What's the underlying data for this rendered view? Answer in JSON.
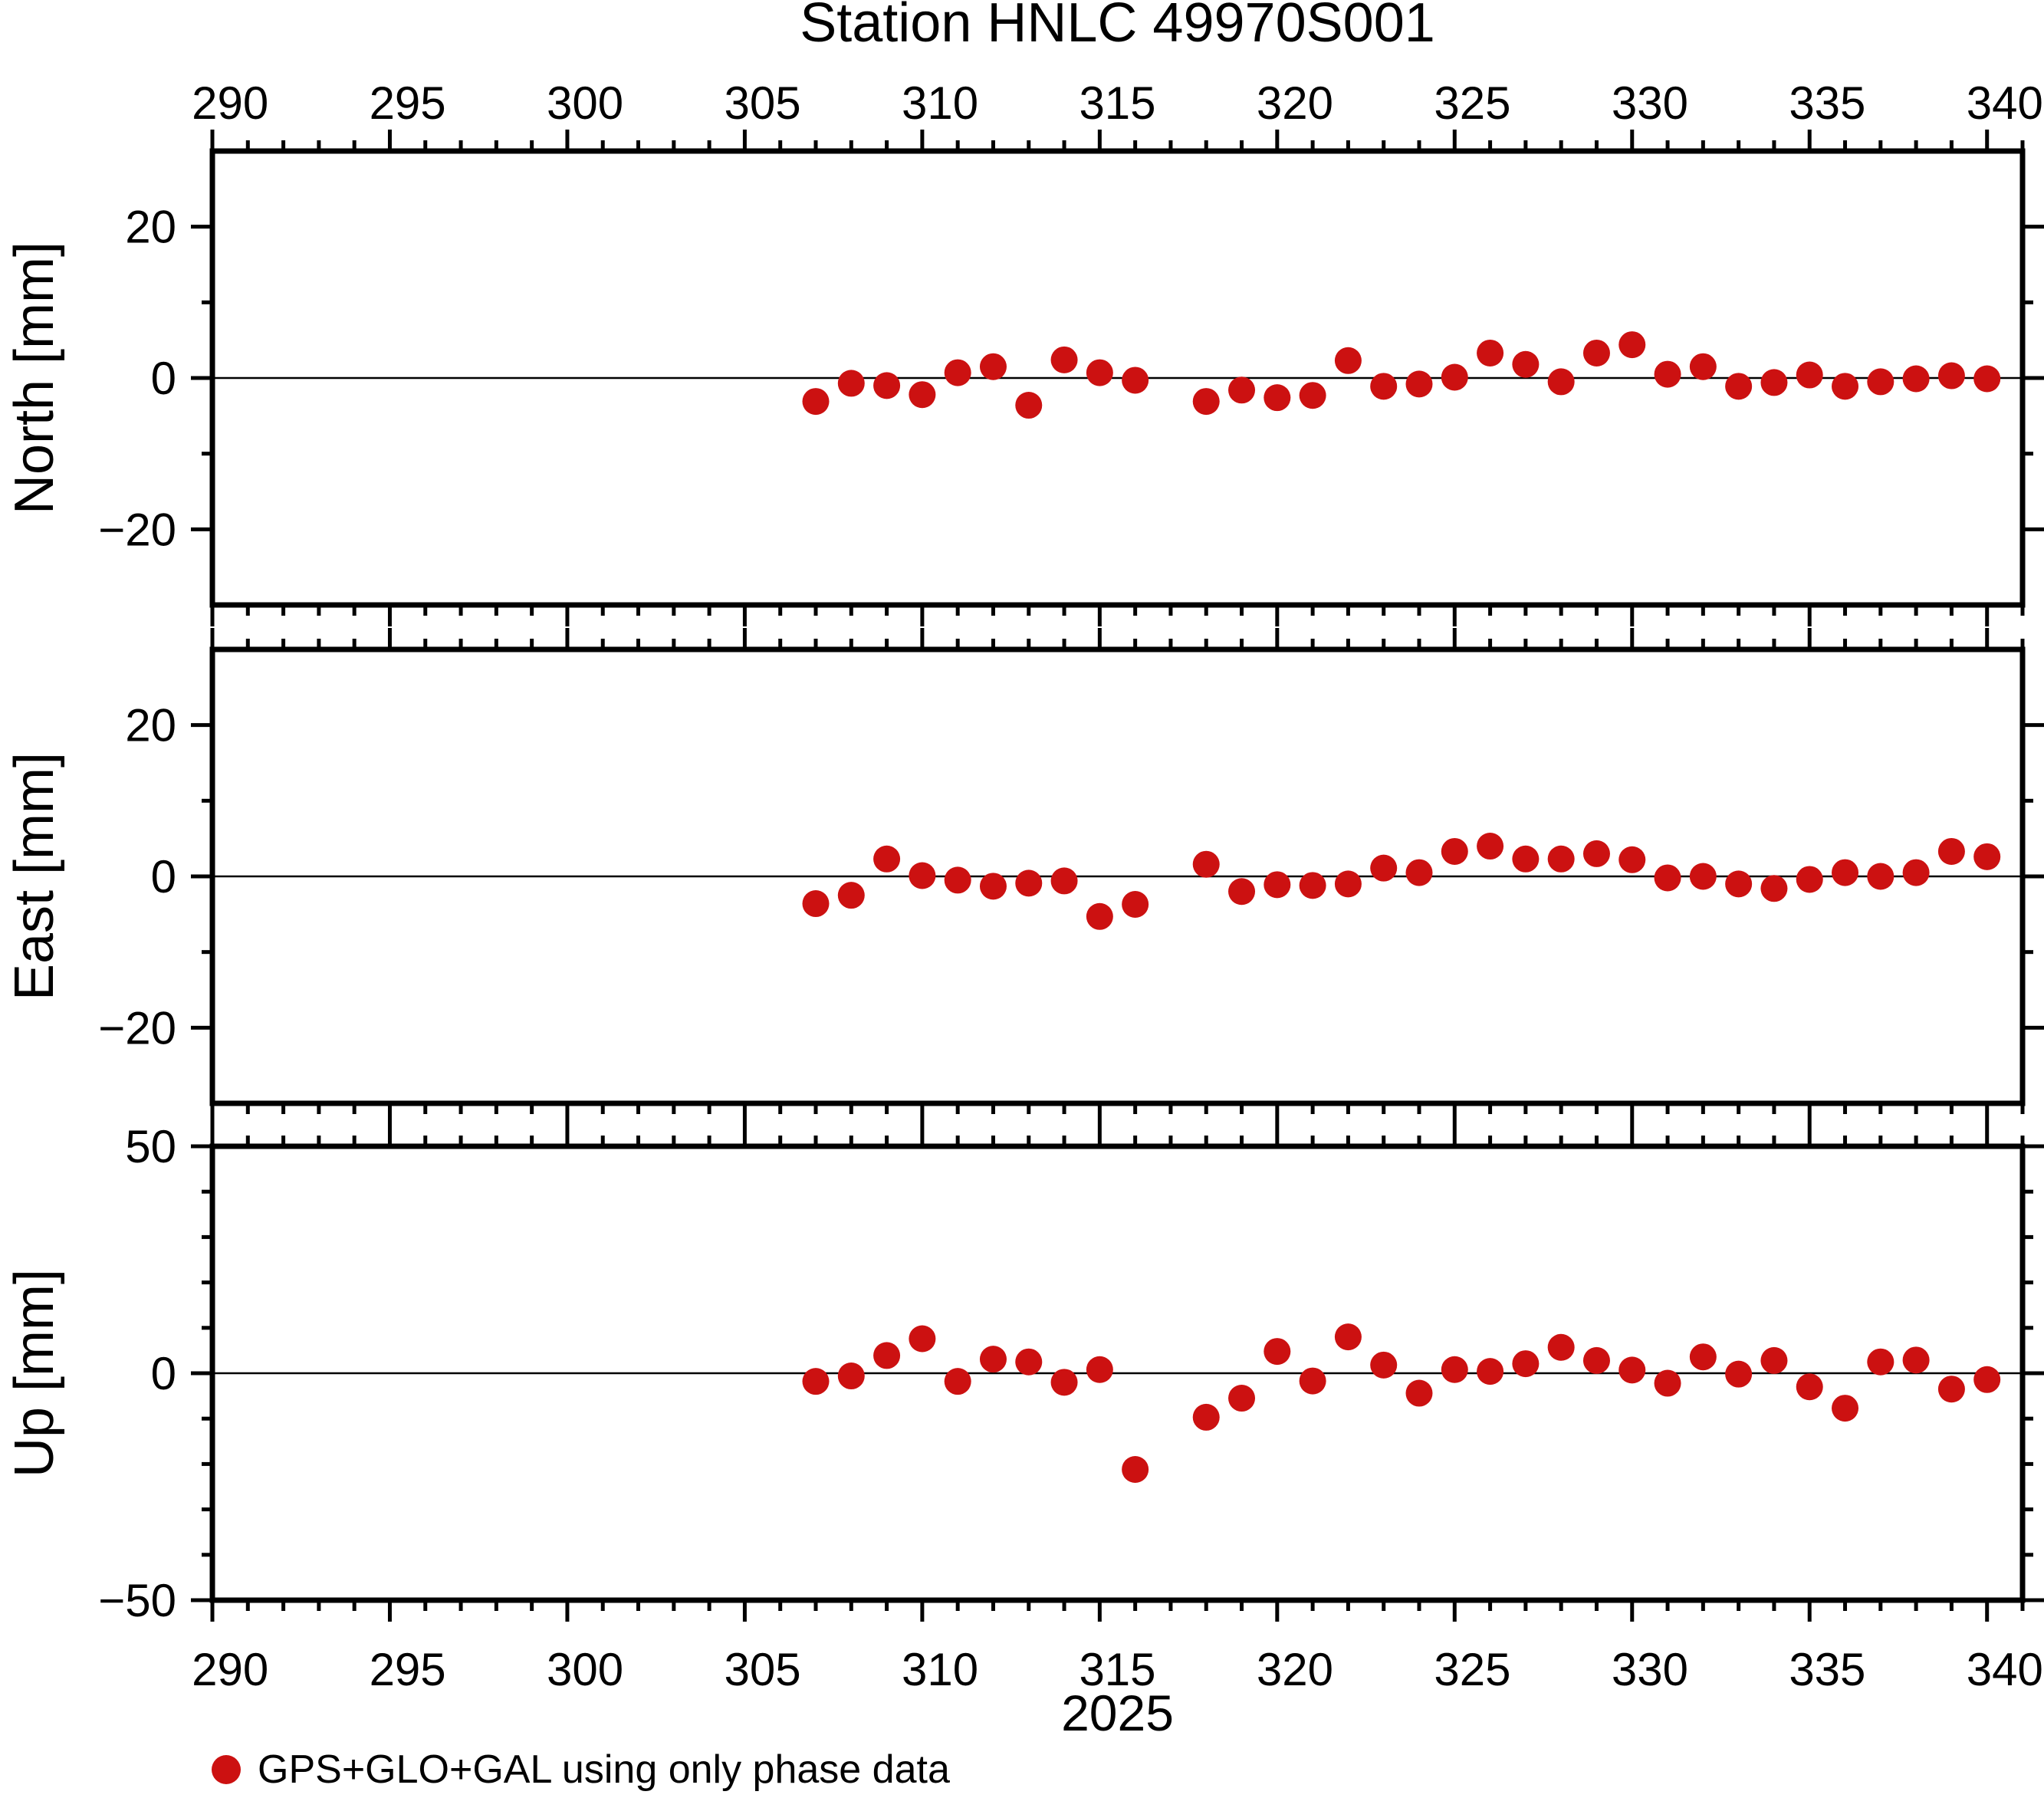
{
  "chart_data": {
    "type": "scatter",
    "title": "Station HNLC 49970S001",
    "xlabel": "2025",
    "legend": {
      "label": "GPS+GLO+GAL using only phase data",
      "position": "bottom-left"
    },
    "marker": {
      "shape": "circle",
      "color": "#cc1111",
      "radius_px": 17.5
    },
    "grid": "zero-line-only",
    "x_axis": {
      "range": [
        290,
        341
      ],
      "minor_tick_interval": 1,
      "major_tick_interval": 5,
      "tick_labels": [
        "290",
        "295",
        "300",
        "305",
        "310",
        "315",
        "320",
        "325",
        "330",
        "335",
        "340"
      ],
      "tick_label_values": [
        290,
        295,
        300,
        305,
        310,
        315,
        320,
        325,
        330,
        335,
        340
      ],
      "label_offset_days": 0.5,
      "labels_on": [
        "top-of-figure",
        "bottom-of-figure"
      ]
    },
    "panels": [
      {
        "name": "North",
        "ylabel": "North [mm]",
        "ylim": [
          -30,
          30
        ],
        "labeled_ticks": [
          {
            "v": 20,
            "label": "20"
          },
          {
            "v": 0,
            "label": "0"
          },
          {
            "v": -20,
            "label": "−20"
          }
        ],
        "minor_ticks": [
          10,
          -10
        ]
      },
      {
        "name": "East",
        "ylabel": "East [mm]",
        "ylim": [
          -30,
          30
        ],
        "labeled_ticks": [
          {
            "v": 20,
            "label": "20"
          },
          {
            "v": 0,
            "label": "0"
          },
          {
            "v": -20,
            "label": "−20"
          }
        ],
        "minor_ticks": [
          10,
          -10
        ]
      },
      {
        "name": "Up",
        "ylabel": "Up [mm]",
        "ylim": [
          -50,
          50
        ],
        "labeled_ticks": [
          {
            "v": 50,
            "label": "50"
          },
          {
            "v": 0,
            "label": "0"
          },
          {
            "v": -50,
            "label": "−50"
          }
        ],
        "minor_ticks": [
          40,
          30,
          20,
          10,
          -10,
          -20,
          -30,
          -40
        ]
      }
    ],
    "days": [
      307,
      308,
      309,
      310,
      311,
      312,
      313,
      314,
      315,
      316,
      318,
      319,
      320,
      321,
      322,
      323,
      324,
      325,
      326,
      327,
      328,
      329,
      330,
      331,
      332,
      333,
      334,
      335,
      336,
      337,
      338,
      339,
      340
    ],
    "series": [
      {
        "name": "North [mm]",
        "values": [
          -3.1,
          -0.7,
          -1.0,
          -2.2,
          0.7,
          1.5,
          -3.6,
          2.4,
          0.7,
          -0.3,
          -3.1,
          -1.6,
          -2.6,
          -2.3,
          2.3,
          -1.1,
          -0.8,
          0.1,
          3.3,
          1.8,
          -0.5,
          3.3,
          4.4,
          0.5,
          1.5,
          -1.1,
          -0.6,
          0.4,
          -1.1,
          -0.5,
          -0.1,
          0.3,
          -0.1
        ]
      },
      {
        "name": "East [mm]",
        "values": [
          -3.6,
          -2.5,
          2.3,
          0.1,
          -0.5,
          -1.3,
          -0.9,
          -0.6,
          -5.3,
          -3.7,
          1.6,
          -2.0,
          -1.1,
          -1.2,
          -1.0,
          1.1,
          0.5,
          3.3,
          4.0,
          2.3,
          2.3,
          3.0,
          2.2,
          -0.2,
          0.0,
          -1.0,
          -1.6,
          -0.4,
          0.5,
          0.0,
          0.5,
          3.3,
          2.6
        ]
      },
      {
        "name": "Up [mm]",
        "values": [
          -1.8,
          -0.6,
          3.9,
          7.6,
          -1.8,
          3.1,
          2.5,
          -2.0,
          0.8,
          -21.2,
          -9.7,
          -5.5,
          4.8,
          -1.7,
          8.0,
          1.8,
          -4.4,
          0.8,
          0.4,
          2.1,
          5.7,
          2.8,
          0.7,
          -2.2,
          3.6,
          -0.2,
          2.8,
          -3.0,
          -7.7,
          2.5,
          2.9,
          -3.5,
          -1.4
        ]
      }
    ]
  }
}
